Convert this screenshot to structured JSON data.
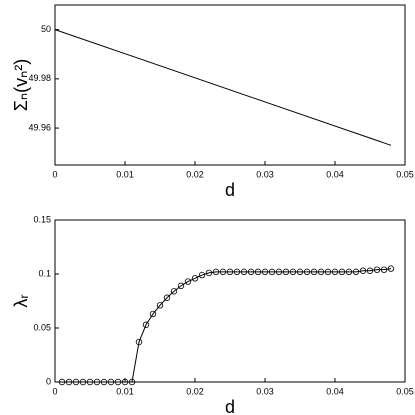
{
  "chart_data": [
    {
      "type": "line",
      "xlabel": "d",
      "ylabel": "Σₙ(vₙ²)",
      "color": "#000000",
      "x": [
        0,
        0.048
      ],
      "values": [
        50,
        49.953
      ],
      "xlim": [
        0,
        0.05
      ],
      "xticks": [
        0,
        0.01,
        0.02,
        0.03,
        0.04,
        0.05
      ],
      "ylim": [
        49.945,
        50.01
      ],
      "yticks": [
        49.96,
        49.98,
        50
      ]
    },
    {
      "type": "line",
      "marker": "o",
      "xlabel": "d",
      "ylabel": "λᵣ",
      "color": "#000000",
      "x": [
        0.001,
        0.002,
        0.003,
        0.004,
        0.005,
        0.006,
        0.007,
        0.008,
        0.009,
        0.01,
        0.011,
        0.012,
        0.013,
        0.014,
        0.015,
        0.016,
        0.017,
        0.018,
        0.019,
        0.02,
        0.021,
        0.022,
        0.023,
        0.024,
        0.025,
        0.026,
        0.027,
        0.028,
        0.029,
        0.03,
        0.031,
        0.032,
        0.033,
        0.034,
        0.035,
        0.036,
        0.037,
        0.038,
        0.039,
        0.04,
        0.041,
        0.042,
        0.043,
        0.044,
        0.045,
        0.046,
        0.047,
        0.048
      ],
      "values": [
        0,
        0,
        0,
        0,
        0,
        0,
        0,
        0,
        0,
        0,
        0,
        0.037,
        0.053,
        0.063,
        0.071,
        0.078,
        0.084,
        0.089,
        0.093,
        0.096,
        0.099,
        0.101,
        0.102,
        0.102,
        0.102,
        0.102,
        0.102,
        0.102,
        0.102,
        0.102,
        0.102,
        0.102,
        0.102,
        0.102,
        0.102,
        0.102,
        0.102,
        0.102,
        0.102,
        0.102,
        0.102,
        0.102,
        0.102,
        0.103,
        0.103,
        0.104,
        0.104,
        0.105
      ],
      "xlim": [
        0,
        0.05
      ],
      "xticks": [
        0,
        0.01,
        0.02,
        0.03,
        0.04,
        0.05
      ],
      "ylim": [
        0,
        0.15
      ],
      "yticks": [
        0,
        0.05,
        0.1,
        0.15
      ]
    }
  ]
}
